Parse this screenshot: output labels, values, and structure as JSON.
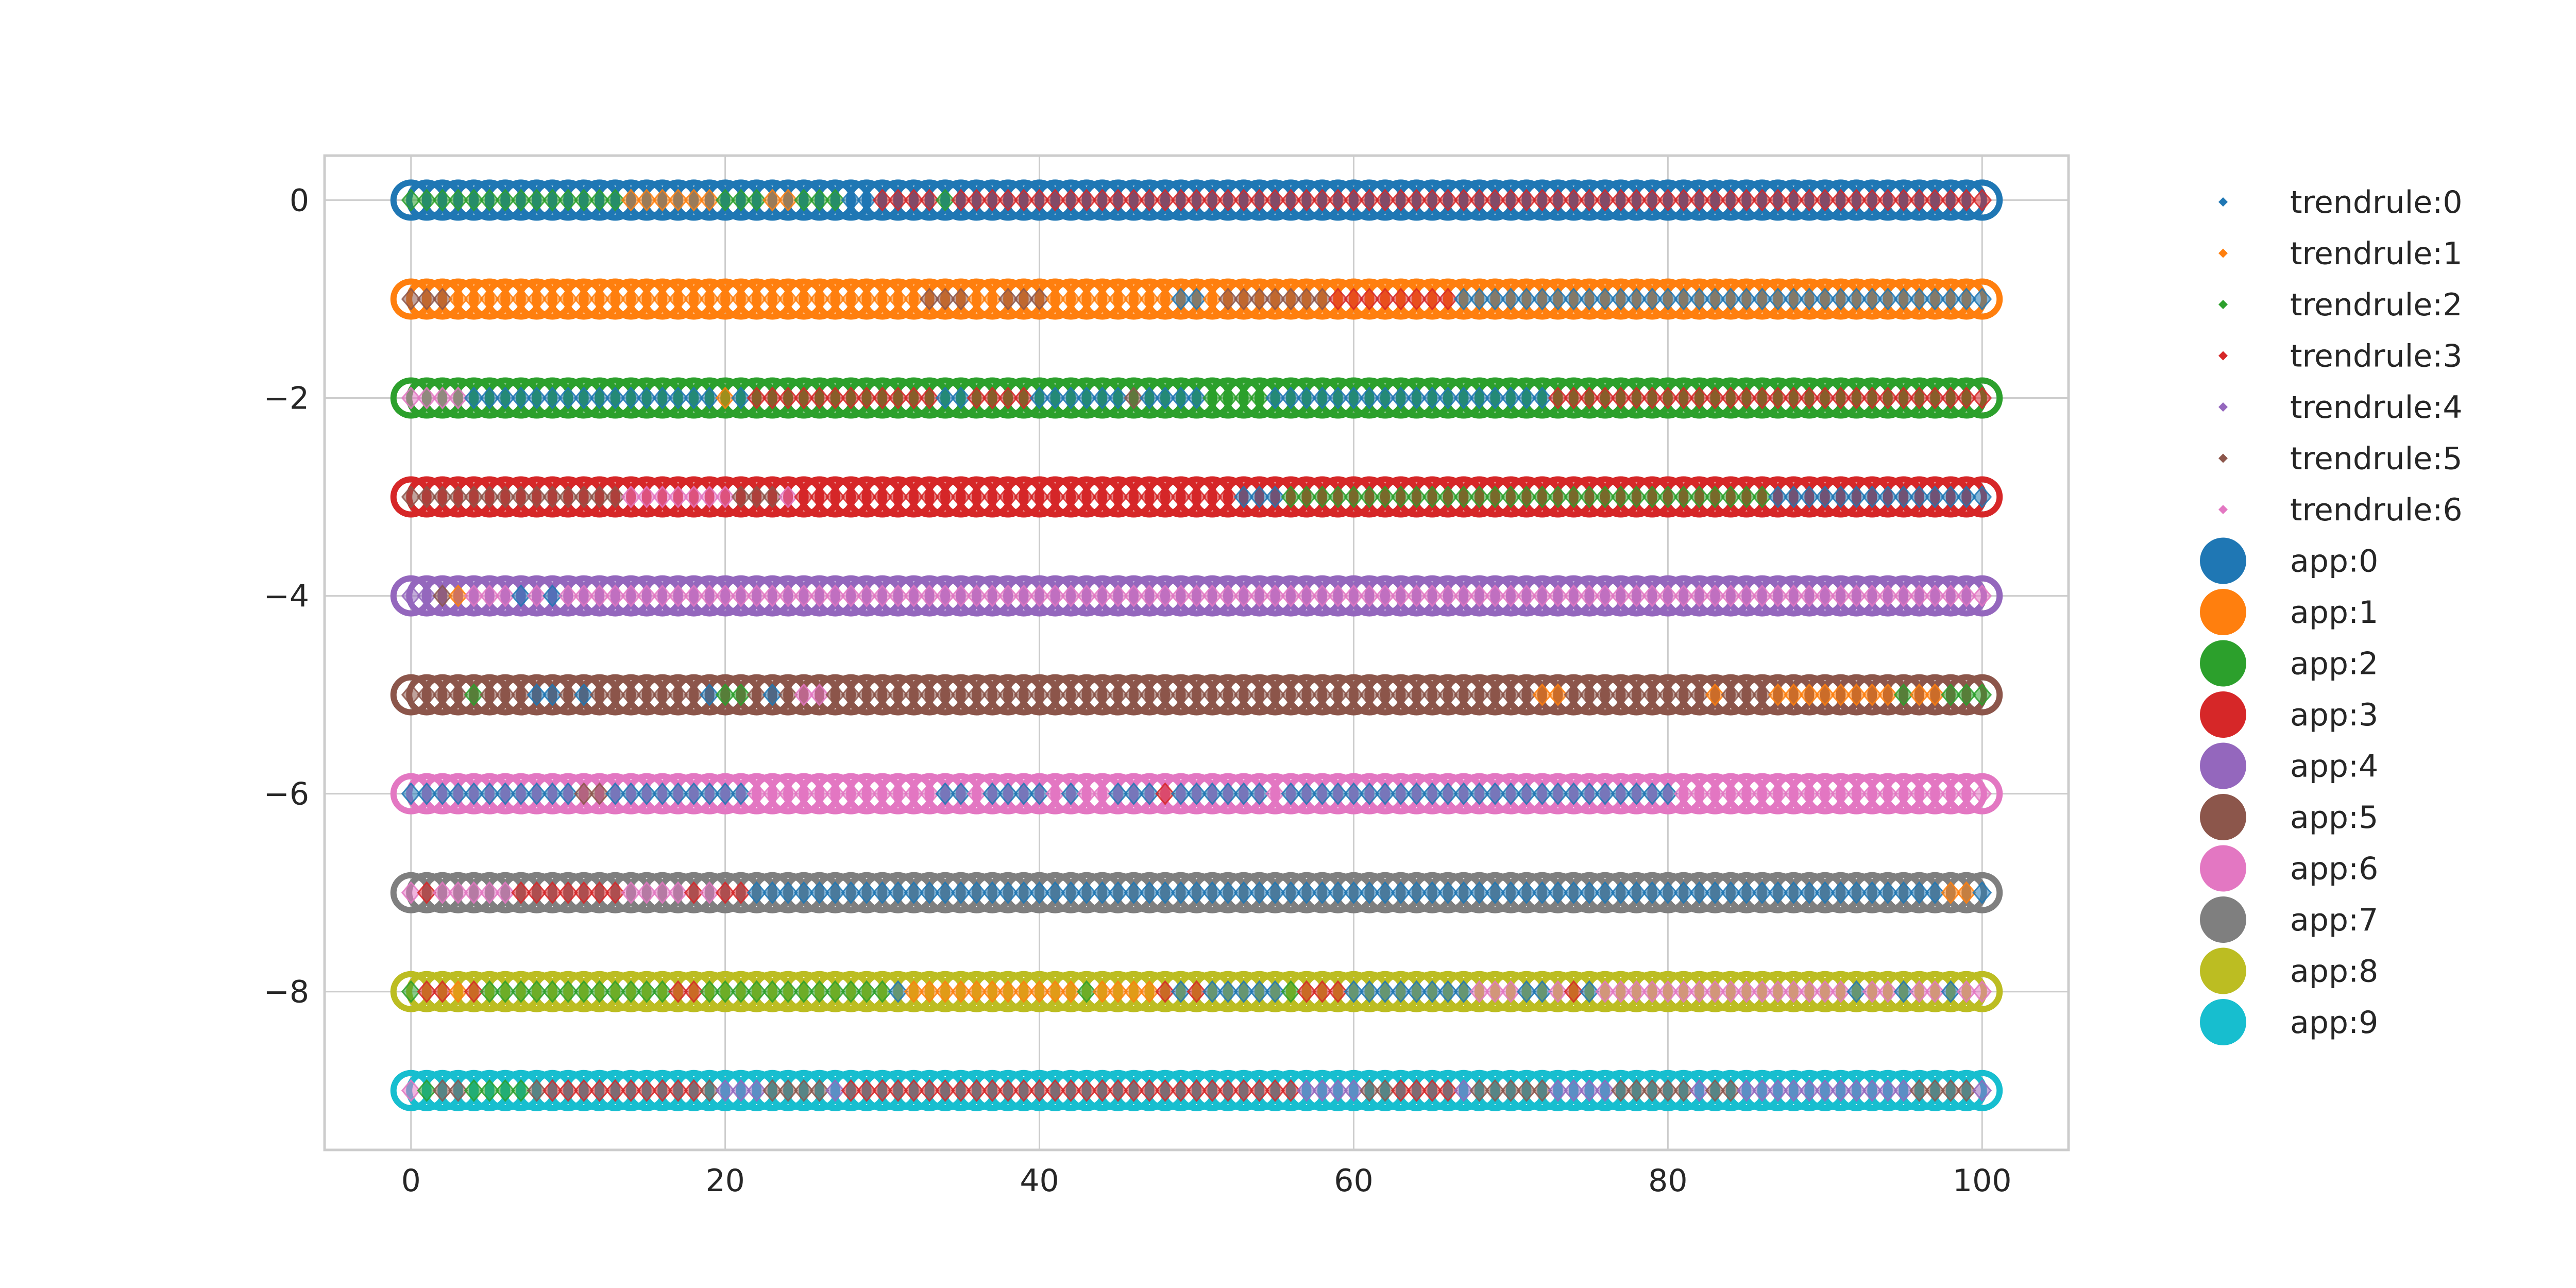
{
  "chart_data": {
    "type": "scatter",
    "title": "",
    "xlabel": "",
    "ylabel": "",
    "xlim": [
      -5.5,
      105.5
    ],
    "ylim": [
      -9.6,
      0.45
    ],
    "x_ticks": [
      0,
      20,
      40,
      60,
      80,
      100
    ],
    "y_ticks": [
      0,
      -2,
      -4,
      -6,
      -8
    ],
    "x_tick_labels": [
      "0",
      "20",
      "40",
      "60",
      "80",
      "100"
    ],
    "y_tick_labels": [
      "0",
      "−2",
      "−4",
      "−6",
      "−8"
    ],
    "grid": true,
    "legend_position": "outside-right",
    "trendrule_colors": [
      "#1f77b4",
      "#ff7f0e",
      "#2ca02c",
      "#d62728",
      "#9467bd",
      "#8c564b",
      "#e377c2"
    ],
    "app_colors": [
      "#1f77b4",
      "#ff7f0e",
      "#2ca02c",
      "#d62728",
      "#9467bd",
      "#8c564b",
      "#e377c2",
      "#7f7f7f",
      "#bcbd22",
      "#17becf"
    ],
    "legend": {
      "trendrules": [
        "trendrule:0",
        "trendrule:1",
        "trendrule:2",
        "trendrule:3",
        "trendrule:4",
        "trendrule:5",
        "trendrule:6"
      ],
      "apps": [
        "app:0",
        "app:1",
        "app:2",
        "app:3",
        "app:4",
        "app:5",
        "app:6",
        "app:7",
        "app:8",
        "app:9"
      ]
    },
    "x_points": {
      "start": 0,
      "end": 100,
      "step": 1
    },
    "rows": [
      {
        "app": "app:0",
        "y": 0,
        "segments": [
          [
            0,
            13,
            2
          ],
          [
            14,
            19,
            1
          ],
          [
            20,
            22,
            2
          ],
          [
            23,
            24,
            1
          ],
          [
            25,
            27,
            2
          ],
          [
            28,
            29,
            0
          ],
          [
            30,
            33,
            3
          ],
          [
            34,
            34,
            2
          ],
          [
            35,
            100,
            3
          ]
        ]
      },
      {
        "app": "app:1",
        "y": -1,
        "segments": [
          [
            0,
            2,
            5
          ],
          [
            3,
            32,
            1
          ],
          [
            33,
            35,
            5
          ],
          [
            36,
            37,
            1
          ],
          [
            38,
            40,
            5
          ],
          [
            41,
            48,
            1
          ],
          [
            49,
            50,
            0
          ],
          [
            51,
            51,
            1
          ],
          [
            52,
            58,
            5
          ],
          [
            59,
            66,
            3
          ],
          [
            67,
            100,
            0
          ]
        ]
      },
      {
        "app": "app:2",
        "y": -2,
        "segments": [
          [
            0,
            3,
            6
          ],
          [
            4,
            19,
            0
          ],
          [
            20,
            20,
            1
          ],
          [
            21,
            21,
            0
          ],
          [
            22,
            33,
            3
          ],
          [
            34,
            35,
            0
          ],
          [
            36,
            39,
            3
          ],
          [
            40,
            45,
            0
          ],
          [
            46,
            46,
            5
          ],
          [
            47,
            50,
            0
          ],
          [
            51,
            54,
            2
          ],
          [
            55,
            72,
            0
          ],
          [
            73,
            100,
            3
          ]
        ]
      },
      {
        "app": "app:3",
        "y": -3,
        "segments": [
          [
            0,
            13,
            5
          ],
          [
            14,
            20,
            6
          ],
          [
            21,
            23,
            5
          ],
          [
            24,
            24,
            6
          ],
          [
            25,
            52,
            3
          ],
          [
            53,
            55,
            0
          ],
          [
            56,
            86,
            2
          ],
          [
            87,
            100,
            0
          ]
        ]
      },
      {
        "app": "app:4",
        "y": -4,
        "segments": [
          [
            0,
            1,
            4
          ],
          [
            2,
            2,
            5
          ],
          [
            3,
            3,
            1
          ],
          [
            4,
            6,
            6
          ],
          [
            7,
            7,
            0
          ],
          [
            8,
            8,
            6
          ],
          [
            9,
            9,
            0
          ],
          [
            10,
            100,
            6
          ]
        ]
      },
      {
        "app": "app:5",
        "y": -5,
        "segments": [
          [
            0,
            3,
            5
          ],
          [
            4,
            4,
            2
          ],
          [
            5,
            7,
            5
          ],
          [
            8,
            9,
            0
          ],
          [
            10,
            10,
            5
          ],
          [
            11,
            11,
            0
          ],
          [
            12,
            18,
            5
          ],
          [
            19,
            19,
            0
          ],
          [
            20,
            21,
            2
          ],
          [
            22,
            22,
            5
          ],
          [
            23,
            23,
            0
          ],
          [
            24,
            24,
            5
          ],
          [
            25,
            26,
            6
          ],
          [
            27,
            71,
            5
          ],
          [
            72,
            73,
            1
          ],
          [
            74,
            82,
            5
          ],
          [
            83,
            83,
            1
          ],
          [
            84,
            86,
            5
          ],
          [
            87,
            94,
            1
          ],
          [
            95,
            95,
            2
          ],
          [
            96,
            97,
            1
          ],
          [
            98,
            100,
            2
          ]
        ]
      },
      {
        "app": "app:6",
        "y": -6,
        "segments": [
          [
            0,
            10,
            0
          ],
          [
            11,
            12,
            5
          ],
          [
            13,
            21,
            0
          ],
          [
            22,
            33,
            6
          ],
          [
            34,
            35,
            0
          ],
          [
            36,
            36,
            6
          ],
          [
            37,
            40,
            0
          ],
          [
            41,
            41,
            6
          ],
          [
            42,
            42,
            0
          ],
          [
            43,
            44,
            6
          ],
          [
            45,
            47,
            0
          ],
          [
            48,
            48,
            3
          ],
          [
            49,
            54,
            0
          ],
          [
            55,
            55,
            6
          ],
          [
            56,
            80,
            0
          ],
          [
            81,
            100,
            6
          ]
        ]
      },
      {
        "app": "app:7",
        "y": -7,
        "segments": [
          [
            0,
            0,
            6
          ],
          [
            1,
            1,
            3
          ],
          [
            2,
            6,
            6
          ],
          [
            7,
            13,
            3
          ],
          [
            14,
            17,
            6
          ],
          [
            18,
            18,
            3
          ],
          [
            19,
            19,
            6
          ],
          [
            20,
            21,
            3
          ],
          [
            22,
            97,
            0
          ],
          [
            98,
            99,
            1
          ],
          [
            100,
            100,
            0
          ]
        ]
      },
      {
        "app": "app:8",
        "y": -8,
        "segments": [
          [
            0,
            0,
            2
          ],
          [
            1,
            2,
            3
          ],
          [
            3,
            3,
            1
          ],
          [
            4,
            4,
            3
          ],
          [
            5,
            16,
            2
          ],
          [
            17,
            18,
            3
          ],
          [
            19,
            30,
            2
          ],
          [
            31,
            31,
            0
          ],
          [
            32,
            42,
            1
          ],
          [
            43,
            43,
            2
          ],
          [
            44,
            47,
            1
          ],
          [
            48,
            48,
            3
          ],
          [
            49,
            49,
            0
          ],
          [
            50,
            50,
            3
          ],
          [
            51,
            55,
            0
          ],
          [
            56,
            56,
            2
          ],
          [
            57,
            59,
            3
          ],
          [
            60,
            67,
            0
          ],
          [
            68,
            70,
            6
          ],
          [
            71,
            72,
            0
          ],
          [
            73,
            73,
            6
          ],
          [
            74,
            74,
            3
          ],
          [
            75,
            75,
            0
          ],
          [
            76,
            91,
            6
          ],
          [
            92,
            92,
            0
          ],
          [
            93,
            94,
            6
          ],
          [
            95,
            95,
            0
          ],
          [
            96,
            97,
            6
          ],
          [
            98,
            98,
            0
          ],
          [
            99,
            100,
            6
          ]
        ]
      },
      {
        "app": "app:9",
        "y": -9,
        "segments": [
          [
            0,
            0,
            6
          ],
          [
            1,
            1,
            2
          ],
          [
            2,
            3,
            5
          ],
          [
            4,
            7,
            2
          ],
          [
            8,
            8,
            5
          ],
          [
            9,
            18,
            3
          ],
          [
            19,
            19,
            5
          ],
          [
            20,
            22,
            4
          ],
          [
            23,
            26,
            5
          ],
          [
            27,
            27,
            4
          ],
          [
            28,
            56,
            3
          ],
          [
            57,
            60,
            4
          ],
          [
            61,
            62,
            5
          ],
          [
            63,
            66,
            3
          ],
          [
            67,
            67,
            4
          ],
          [
            68,
            72,
            5
          ],
          [
            73,
            76,
            4
          ],
          [
            77,
            81,
            5
          ],
          [
            82,
            82,
            4
          ],
          [
            83,
            84,
            5
          ],
          [
            85,
            95,
            4
          ],
          [
            96,
            99,
            5
          ],
          [
            100,
            100,
            4
          ]
        ]
      }
    ]
  }
}
